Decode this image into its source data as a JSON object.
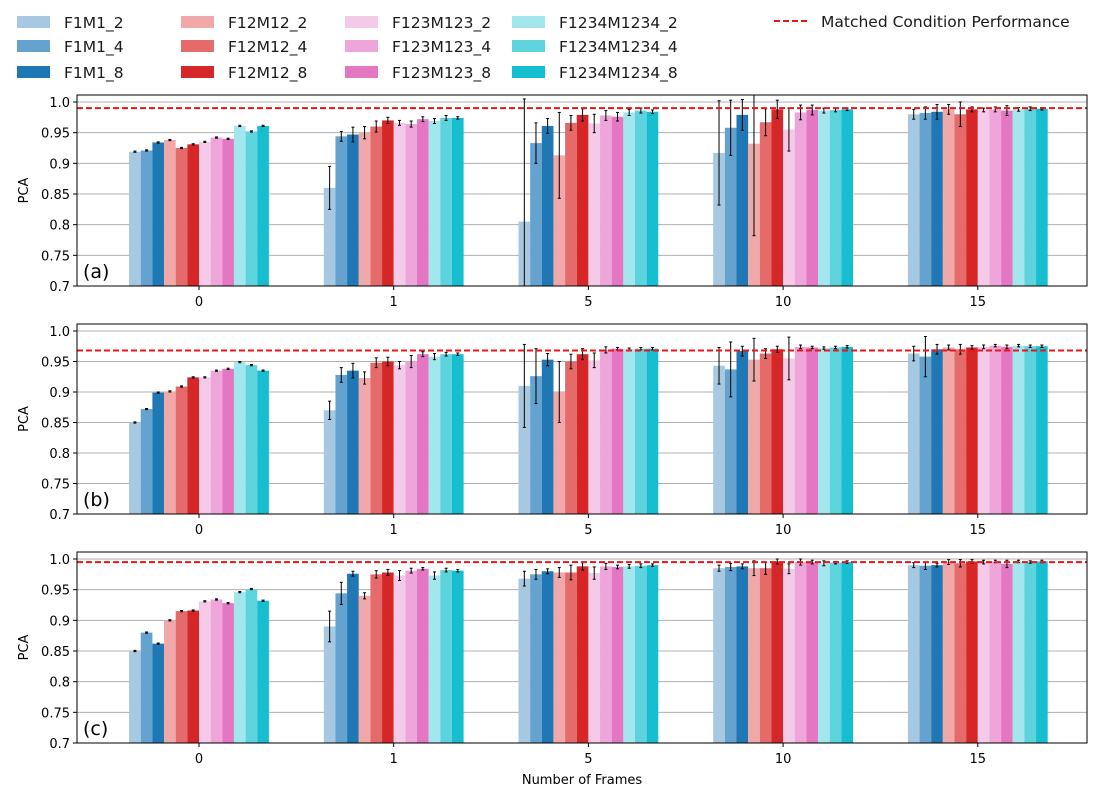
{
  "legend": {
    "entries": [
      {
        "label": "F1M1_2",
        "color": "#a6c8e0"
      },
      {
        "label": "F1M1_4",
        "color": "#64a2d0"
      },
      {
        "label": "F1M1_8",
        "color": "#1f77b4"
      },
      {
        "label": "F12M12_2",
        "color": "#f0a8a8"
      },
      {
        "label": "F12M12_4",
        "color": "#e56b6b"
      },
      {
        "label": "F12M12_8",
        "color": "#d62728"
      },
      {
        "label": "F123M123_2",
        "color": "#f5c9e8"
      },
      {
        "label": "F123M123_4",
        "color": "#eea5da"
      },
      {
        "label": "F123M123_8",
        "color": "#e377c2"
      },
      {
        "label": "F1234M1234_2",
        "color": "#a3e7ee"
      },
      {
        "label": "F1234M1234_4",
        "color": "#5dd3de"
      },
      {
        "label": "F1234M1234_8",
        "color": "#17becf"
      }
    ],
    "matched_label": "Matched Condition Performance",
    "matched_color": "#e8151b"
  },
  "chart_data": [
    {
      "type": "bar",
      "panel_label": "(a)",
      "ylabel": "PCA",
      "xlabel": "",
      "categories": [
        "0",
        "1",
        "5",
        "10",
        "15"
      ],
      "ylim": [
        0.7,
        1.0
      ],
      "yticks": [
        "0.7",
        "0.75",
        "0.8",
        "0.85",
        "0.9",
        "0.95",
        "1.0"
      ],
      "grid": "horizontal",
      "matched_condition": 0.99,
      "series": [
        {
          "name": "F1M1_2",
          "values": [
            0.919,
            0.86,
            0.805,
            0.917,
            0.98
          ],
          "errors": [
            0.001,
            0.035,
            0.2,
            0.085,
            0.008
          ]
        },
        {
          "name": "F1M1_4",
          "values": [
            0.921,
            0.944,
            0.933,
            0.958,
            0.982
          ],
          "errors": [
            0.001,
            0.008,
            0.033,
            0.045,
            0.01
          ]
        },
        {
          "name": "F1M1_8",
          "values": [
            0.934,
            0.947,
            0.961,
            0.979,
            0.984
          ],
          "errors": [
            0.001,
            0.012,
            0.012,
            0.025,
            0.012
          ]
        },
        {
          "name": "F12M12_2",
          "values": [
            0.938,
            0.95,
            0.913,
            0.932,
            0.988
          ],
          "errors": [
            0.001,
            0.01,
            0.07,
            0.15,
            0.008
          ]
        },
        {
          "name": "F12M12_4",
          "values": [
            0.925,
            0.96,
            0.966,
            0.967,
            0.98
          ],
          "errors": [
            0.001,
            0.009,
            0.012,
            0.022,
            0.02
          ]
        },
        {
          "name": "F12M12_8",
          "values": [
            0.931,
            0.97,
            0.979,
            0.988,
            0.988
          ],
          "errors": [
            0.001,
            0.005,
            0.01,
            0.015,
            0.004
          ]
        },
        {
          "name": "F123M123_2",
          "values": [
            0.935,
            0.966,
            0.965,
            0.955,
            0.987
          ],
          "errors": [
            0.001,
            0.004,
            0.015,
            0.035,
            0.003
          ]
        },
        {
          "name": "F123M123_4",
          "values": [
            0.942,
            0.964,
            0.978,
            0.983,
            0.988
          ],
          "errors": [
            0.001,
            0.005,
            0.008,
            0.012,
            0.004
          ]
        },
        {
          "name": "F123M123_8",
          "values": [
            0.94,
            0.972,
            0.976,
            0.987,
            0.986
          ],
          "errors": [
            0.001,
            0.004,
            0.007,
            0.008,
            0.008
          ]
        },
        {
          "name": "F1234M1234_2",
          "values": [
            0.961,
            0.969,
            0.983,
            0.986,
            0.988
          ],
          "errors": [
            0.001,
            0.004,
            0.005,
            0.004,
            0.003
          ]
        },
        {
          "name": "F1234M1234_4",
          "values": [
            0.952,
            0.974,
            0.986,
            0.987,
            0.989
          ],
          "errors": [
            0.001,
            0.004,
            0.004,
            0.003,
            0.003
          ]
        },
        {
          "name": "F1234M1234_8",
          "values": [
            0.961,
            0.974,
            0.984,
            0.988,
            0.989
          ],
          "errors": [
            0.001,
            0.002,
            0.003,
            0.002,
            0.002
          ]
        }
      ]
    },
    {
      "type": "bar",
      "panel_label": "(b)",
      "ylabel": "PCA",
      "xlabel": "",
      "categories": [
        "0",
        "1",
        "5",
        "10",
        "15"
      ],
      "ylim": [
        0.7,
        1.0
      ],
      "yticks": [
        "0.7",
        "0.75",
        "0.8",
        "0.85",
        "0.9",
        "0.95",
        "1.0"
      ],
      "grid": "horizontal",
      "matched_condition": 0.968,
      "series": [
        {
          "name": "F1M1_2",
          "values": [
            0.85,
            0.87,
            0.91,
            0.943,
            0.963
          ],
          "errors": [
            0.001,
            0.015,
            0.068,
            0.03,
            0.012
          ]
        },
        {
          "name": "F1M1_4",
          "values": [
            0.872,
            0.928,
            0.926,
            0.937,
            0.958
          ],
          "errors": [
            0.001,
            0.012,
            0.045,
            0.045,
            0.033
          ]
        },
        {
          "name": "F1M1_8",
          "values": [
            0.899,
            0.935,
            0.953,
            0.967,
            0.97
          ],
          "errors": [
            0.001,
            0.012,
            0.01,
            0.008,
            0.008
          ]
        },
        {
          "name": "F12M12_2",
          "values": [
            0.901,
            0.923,
            0.9,
            0.953,
            0.973
          ],
          "errors": [
            0.001,
            0.01,
            0.05,
            0.035,
            0.004
          ]
        },
        {
          "name": "F12M12_4",
          "values": [
            0.909,
            0.948,
            0.95,
            0.963,
            0.97
          ],
          "errors": [
            0.001,
            0.008,
            0.012,
            0.008,
            0.008
          ]
        },
        {
          "name": "F12M12_8",
          "values": [
            0.924,
            0.95,
            0.962,
            0.97,
            0.973
          ],
          "errors": [
            0.001,
            0.007,
            0.009,
            0.005,
            0.003
          ]
        },
        {
          "name": "F123M123_2",
          "values": [
            0.924,
            0.944,
            0.952,
            0.955,
            0.974
          ],
          "errors": [
            0.001,
            0.006,
            0.012,
            0.035,
            0.003
          ]
        },
        {
          "name": "F123M123_4",
          "values": [
            0.935,
            0.95,
            0.969,
            0.974,
            0.976
          ],
          "errors": [
            0.001,
            0.01,
            0.005,
            0.003,
            0.002
          ]
        },
        {
          "name": "F123M123_8",
          "values": [
            0.938,
            0.962,
            0.971,
            0.973,
            0.974
          ],
          "errors": [
            0.001,
            0.004,
            0.002,
            0.002,
            0.003
          ]
        },
        {
          "name": "F1234M1234_2",
          "values": [
            0.949,
            0.958,
            0.97,
            0.972,
            0.976
          ],
          "errors": [
            0.001,
            0.005,
            0.002,
            0.002,
            0.002
          ]
        },
        {
          "name": "F1234M1234_4",
          "values": [
            0.944,
            0.962,
            0.971,
            0.973,
            0.975
          ],
          "errors": [
            0.001,
            0.003,
            0.002,
            0.002,
            0.002
          ]
        },
        {
          "name": "F1234M1234_8",
          "values": [
            0.935,
            0.962,
            0.971,
            0.974,
            0.975
          ],
          "errors": [
            0.001,
            0.002,
            0.002,
            0.002,
            0.002
          ]
        }
      ]
    },
    {
      "type": "bar",
      "panel_label": "(c)",
      "ylabel": "PCA",
      "xlabel": "Number of Frames",
      "categories": [
        "0",
        "1",
        "5",
        "10",
        "15"
      ],
      "ylim": [
        0.7,
        1.0
      ],
      "yticks": [
        "0.7",
        "0.75",
        "0.8",
        "0.85",
        "0.9",
        "0.95",
        "1.0"
      ],
      "grid": "horizontal",
      "matched_condition": 0.995,
      "series": [
        {
          "name": "F1M1_2",
          "values": [
            0.85,
            0.89,
            0.968,
            0.985,
            0.99
          ],
          "errors": [
            0.001,
            0.025,
            0.012,
            0.005,
            0.004
          ]
        },
        {
          "name": "F1M1_4",
          "values": [
            0.88,
            0.944,
            0.975,
            0.987,
            0.989
          ],
          "errors": [
            0.001,
            0.018,
            0.008,
            0.006,
            0.006
          ]
        },
        {
          "name": "F1M1_8",
          "values": [
            0.862,
            0.976,
            0.98,
            0.988,
            0.99
          ],
          "errors": [
            0.001,
            0.004,
            0.004,
            0.004,
            0.003
          ]
        },
        {
          "name": "F12M12_2",
          "values": [
            0.9,
            0.94,
            0.978,
            0.985,
            0.995
          ],
          "errors": [
            0.001,
            0.005,
            0.008,
            0.012,
            0.004
          ]
        },
        {
          "name": "F12M12_4",
          "values": [
            0.915,
            0.975,
            0.978,
            0.985,
            0.993
          ],
          "errors": [
            0.001,
            0.006,
            0.012,
            0.01,
            0.006
          ]
        },
        {
          "name": "F12M12_8",
          "values": [
            0.916,
            0.978,
            0.988,
            0.996,
            0.996
          ],
          "errors": [
            0.001,
            0.005,
            0.006,
            0.004,
            0.003
          ]
        },
        {
          "name": "F123M123_2",
          "values": [
            0.931,
            0.973,
            0.977,
            0.984,
            0.995
          ],
          "errors": [
            0.001,
            0.008,
            0.01,
            0.008,
            0.003
          ]
        },
        {
          "name": "F123M123_4",
          "values": [
            0.934,
            0.981,
            0.988,
            0.995,
            0.996
          ],
          "errors": [
            0.001,
            0.004,
            0.005,
            0.005,
            0.002
          ]
        },
        {
          "name": "F123M123_8",
          "values": [
            0.928,
            0.984,
            0.987,
            0.995,
            0.992
          ],
          "errors": [
            0.001,
            0.002,
            0.003,
            0.003,
            0.006
          ]
        },
        {
          "name": "F1234M1234_2",
          "values": [
            0.946,
            0.973,
            0.988,
            0.993,
            0.996
          ],
          "errors": [
            0.001,
            0.006,
            0.003,
            0.004,
            0.002
          ]
        },
        {
          "name": "F1234M1234_4",
          "values": [
            0.951,
            0.982,
            0.989,
            0.994,
            0.995
          ],
          "errors": [
            0.001,
            0.003,
            0.003,
            0.002,
            0.002
          ]
        },
        {
          "name": "F1234M1234_8",
          "values": [
            0.932,
            0.981,
            0.99,
            0.995,
            0.996
          ],
          "errors": [
            0.001,
            0.002,
            0.002,
            0.002,
            0.002
          ]
        }
      ]
    }
  ]
}
